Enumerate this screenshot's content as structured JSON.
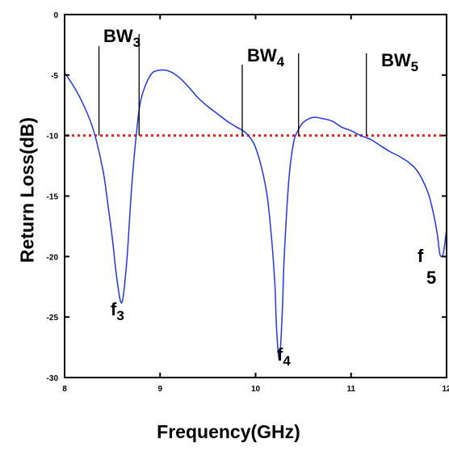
{
  "chart_data": {
    "type": "line",
    "xlabel": "Frequency(GHz)",
    "ylabel": "Return Loss(dB)",
    "xlim": [
      8,
      12
    ],
    "ylim": [
      -30,
      0
    ],
    "x_ticks": [
      "8",
      "9",
      "10",
      "11",
      "12"
    ],
    "y_ticks": [
      "0",
      "-5",
      "-10",
      "-15",
      "-20",
      "-25",
      "-30"
    ],
    "threshold_line": {
      "y": -10,
      "color": "#e8201c",
      "style": "dotted"
    },
    "series": [
      {
        "color": "#2336e0",
        "x": [
          8.0,
          8.1,
          8.2,
          8.3,
          8.4,
          8.45,
          8.5,
          8.55,
          8.6,
          8.65,
          8.7,
          8.75,
          8.8,
          8.9,
          9.0,
          9.1,
          9.2,
          9.3,
          9.4,
          9.5,
          9.6,
          9.7,
          9.8,
          9.9,
          10.0,
          10.1,
          10.15,
          10.2,
          10.22,
          10.25,
          10.28,
          10.3,
          10.35,
          10.4,
          10.45,
          10.5,
          10.6,
          10.7,
          10.8,
          10.9,
          11.0,
          11.1,
          11.2,
          11.3,
          11.4,
          11.5,
          11.6,
          11.7,
          11.8,
          11.85,
          11.9,
          11.93,
          11.96,
          11.98,
          12.0
        ],
        "y": [
          -4.8,
          -6.0,
          -7.5,
          -9.5,
          -12.8,
          -15.5,
          -18.5,
          -22.0,
          -23.8,
          -20.5,
          -14.5,
          -10.0,
          -7.0,
          -5.0,
          -4.6,
          -4.7,
          -5.2,
          -6.0,
          -6.9,
          -7.6,
          -8.2,
          -8.8,
          -9.3,
          -9.8,
          -11.0,
          -14.0,
          -17.0,
          -22.0,
          -26.0,
          -28.5,
          -24.5,
          -20.0,
          -13.5,
          -10.5,
          -9.5,
          -8.9,
          -8.5,
          -8.6,
          -8.8,
          -9.3,
          -9.6,
          -10.0,
          -10.3,
          -10.8,
          -11.3,
          -11.7,
          -12.2,
          -13.0,
          -14.6,
          -16.0,
          -18.0,
          -19.8,
          -19.9,
          -19.0,
          -17.7
        ]
      }
    ],
    "annotations": {
      "bw3": {
        "main": "BW",
        "sub": "3"
      },
      "bw4": {
        "main": "BW",
        "sub": "4"
      },
      "bw5": {
        "main": "BW",
        "sub": "5"
      },
      "f3": {
        "main": "f",
        "sub": "3"
      },
      "f4": {
        "main": "f",
        "sub": "4"
      },
      "f5": {
        "main": "f",
        "sub": "5"
      }
    }
  }
}
